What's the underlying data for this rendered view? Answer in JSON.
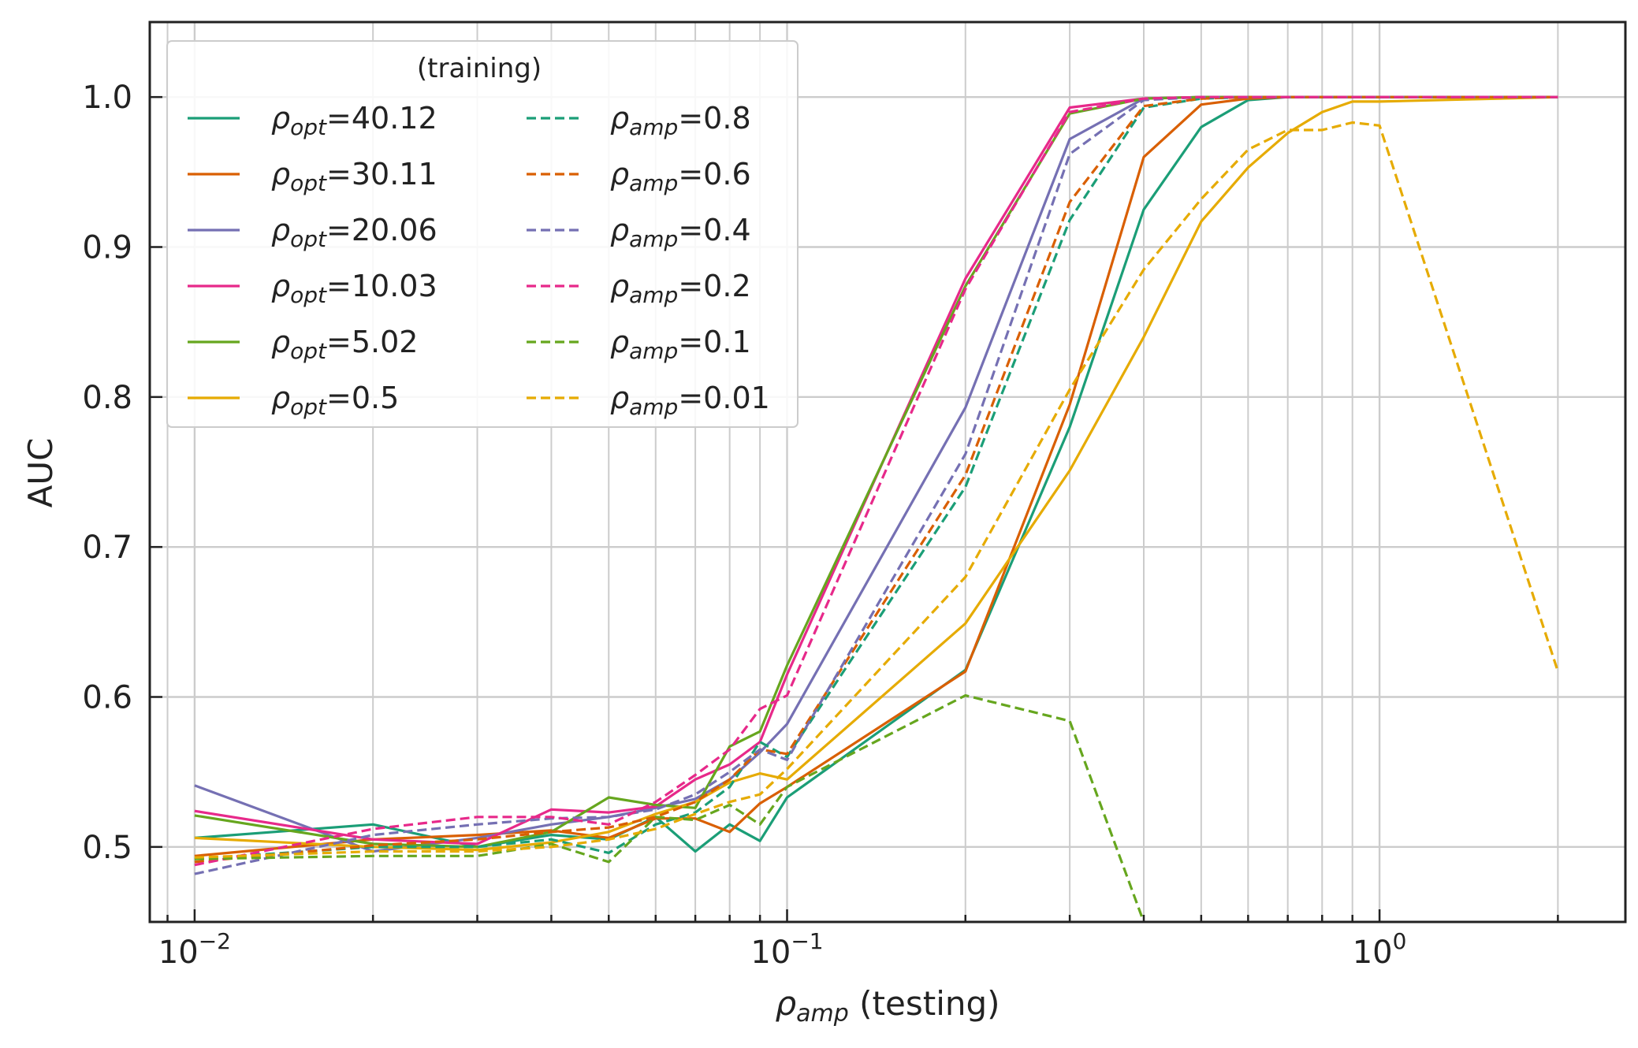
{
  "chart_data": {
    "type": "line",
    "xscale": "log",
    "xlabel_main": "ρ",
    "xlabel_sub": "amp",
    "xlabel_rest": " (testing)",
    "ylabel": "AUC",
    "xlim": [
      0.0084,
      2.6
    ],
    "ylim": [
      0.45,
      1.05
    ],
    "grid": true,
    "x_ticks": [
      {
        "value": 0.01,
        "base": "10",
        "exp": "−2"
      },
      {
        "value": 0.1,
        "base": "10",
        "exp": "−1"
      },
      {
        "value": 1,
        "base": "10",
        "exp": "0"
      }
    ],
    "y_ticks": [
      {
        "value": 0.5,
        "label": "0.5"
      },
      {
        "value": 0.6,
        "label": "0.6"
      },
      {
        "value": 0.7,
        "label": "0.7"
      },
      {
        "value": 0.8,
        "label": "0.8"
      },
      {
        "value": 0.9,
        "label": "0.9"
      },
      {
        "value": 1.0,
        "label": "1.0"
      }
    ],
    "x": [
      0.01,
      0.02,
      0.03,
      0.04,
      0.05,
      0.06,
      0.07,
      0.08,
      0.09,
      0.1,
      0.2,
      0.3,
      0.4,
      0.5,
      0.6,
      0.7,
      0.8,
      0.9,
      1.0,
      2.0
    ],
    "legend": {
      "title": "(training)",
      "placement": "upper-left",
      "columns": 2
    },
    "series": [
      {
        "name": "ρopt=40.12",
        "sym": "ρ",
        "sub": "opt",
        "val": "=40.12",
        "color": "#1b9e77",
        "dash": "solid",
        "values": [
          0.506,
          0.515,
          0.5,
          0.508,
          0.505,
          0.52,
          0.497,
          0.515,
          0.504,
          0.533,
          0.618,
          0.78,
          0.925,
          0.98,
          0.998,
          1.0,
          1.0,
          1.0,
          1.0,
          1.0
        ]
      },
      {
        "name": "ρopt=30.11",
        "sym": "ρ",
        "sub": "opt",
        "val": "=30.11",
        "color": "#d95f02",
        "dash": "solid",
        "values": [
          0.494,
          0.505,
          0.508,
          0.511,
          0.506,
          0.519,
          0.519,
          0.51,
          0.529,
          0.54,
          0.617,
          0.795,
          0.96,
          0.995,
          0.999,
          1.0,
          1.0,
          1.0,
          1.0,
          1.0
        ]
      },
      {
        "name": "ρopt=20.06",
        "sym": "ρ",
        "sub": "opt",
        "val": "=20.06",
        "color": "#7570b3",
        "dash": "solid",
        "values": [
          0.541,
          0.497,
          0.506,
          0.515,
          0.52,
          0.526,
          0.532,
          0.545,
          0.563,
          0.582,
          0.793,
          0.972,
          0.999,
          1.0,
          1.0,
          1.0,
          1.0,
          1.0,
          1.0,
          1.0
        ]
      },
      {
        "name": "ρopt=10.03",
        "sym": "ρ",
        "sub": "opt",
        "val": "=10.03",
        "color": "#e7298a",
        "dash": "solid",
        "values": [
          0.524,
          0.505,
          0.502,
          0.525,
          0.523,
          0.527,
          0.545,
          0.555,
          0.57,
          0.615,
          0.879,
          0.993,
          0.999,
          1.0,
          1.0,
          1.0,
          1.0,
          1.0,
          1.0,
          1.0
        ]
      },
      {
        "name": "ρopt=5.02",
        "sym": "ρ",
        "sub": "opt",
        "val": "=5.02",
        "color": "#66a61e",
        "dash": "solid",
        "values": [
          0.521,
          0.502,
          0.5,
          0.51,
          0.533,
          0.528,
          0.526,
          0.567,
          0.577,
          0.621,
          0.874,
          0.989,
          0.999,
          1.0,
          1.0,
          1.0,
          1.0,
          1.0,
          1.0,
          1.0
        ]
      },
      {
        "name": "ρopt=0.5",
        "sym": "ρ",
        "sub": "opt",
        "val": "=0.5",
        "color": "#e6ab02",
        "dash": "solid",
        "values": [
          0.506,
          0.5,
          0.498,
          0.503,
          0.51,
          0.522,
          0.53,
          0.543,
          0.549,
          0.545,
          0.649,
          0.751,
          0.84,
          0.917,
          0.953,
          0.976,
          0.99,
          0.997,
          0.997,
          1.0
        ]
      },
      {
        "name": "ρamp=0.8",
        "sym": "ρ",
        "sub": "amp",
        "val": "=0.8",
        "color": "#1b9e77",
        "dash": "dashed",
        "values": [
          0.492,
          0.5,
          0.5,
          0.505,
          0.496,
          0.515,
          0.523,
          0.54,
          0.57,
          0.56,
          0.74,
          0.918,
          0.993,
          0.999,
          1.0,
          1.0,
          1.0,
          1.0,
          1.0,
          1.0
        ]
      },
      {
        "name": "ρamp=0.6",
        "sym": "ρ",
        "sub": "amp",
        "val": "=0.6",
        "color": "#d95f02",
        "dash": "dashed",
        "values": [
          0.49,
          0.501,
          0.505,
          0.51,
          0.513,
          0.52,
          0.53,
          0.545,
          0.565,
          0.562,
          0.748,
          0.93,
          0.994,
          0.999,
          1.0,
          1.0,
          1.0,
          1.0,
          1.0,
          1.0
        ]
      },
      {
        "name": "ρamp=0.4",
        "sym": "ρ",
        "sub": "amp",
        "val": "=0.4",
        "color": "#7570b3",
        "dash": "dashed",
        "values": [
          0.482,
          0.508,
          0.515,
          0.519,
          0.52,
          0.525,
          0.535,
          0.55,
          0.565,
          0.558,
          0.762,
          0.962,
          0.998,
          1.0,
          1.0,
          1.0,
          1.0,
          1.0,
          1.0,
          1.0
        ]
      },
      {
        "name": "ρamp=0.2",
        "sym": "ρ",
        "sub": "amp",
        "val": "=0.2",
        "color": "#e7298a",
        "dash": "dashed",
        "values": [
          0.488,
          0.512,
          0.52,
          0.52,
          0.515,
          0.53,
          0.548,
          0.565,
          0.592,
          0.601,
          0.872,
          0.99,
          0.999,
          1.0,
          1.0,
          1.0,
          1.0,
          1.0,
          1.0,
          1.0
        ]
      },
      {
        "name": "ρamp=0.1",
        "sym": "ρ",
        "sub": "amp",
        "val": "=0.1",
        "color": "#66a61e",
        "dash": "dashed",
        "values": [
          0.492,
          0.494,
          0.494,
          0.502,
          0.49,
          0.52,
          0.518,
          0.528,
          0.515,
          0.54,
          0.601,
          0.584,
          0.45,
          null,
          null,
          null,
          null,
          null,
          null,
          null
        ]
      },
      {
        "name": "ρamp=0.01",
        "sym": "ρ",
        "sub": "amp",
        "val": "=0.01",
        "color": "#e6ab02",
        "dash": "dashed",
        "values": [
          0.493,
          0.497,
          0.497,
          0.5,
          0.505,
          0.512,
          0.522,
          0.53,
          0.535,
          0.552,
          0.68,
          0.805,
          0.885,
          0.932,
          0.965,
          0.978,
          0.978,
          0.983,
          0.981,
          0.617
        ]
      }
    ]
  }
}
